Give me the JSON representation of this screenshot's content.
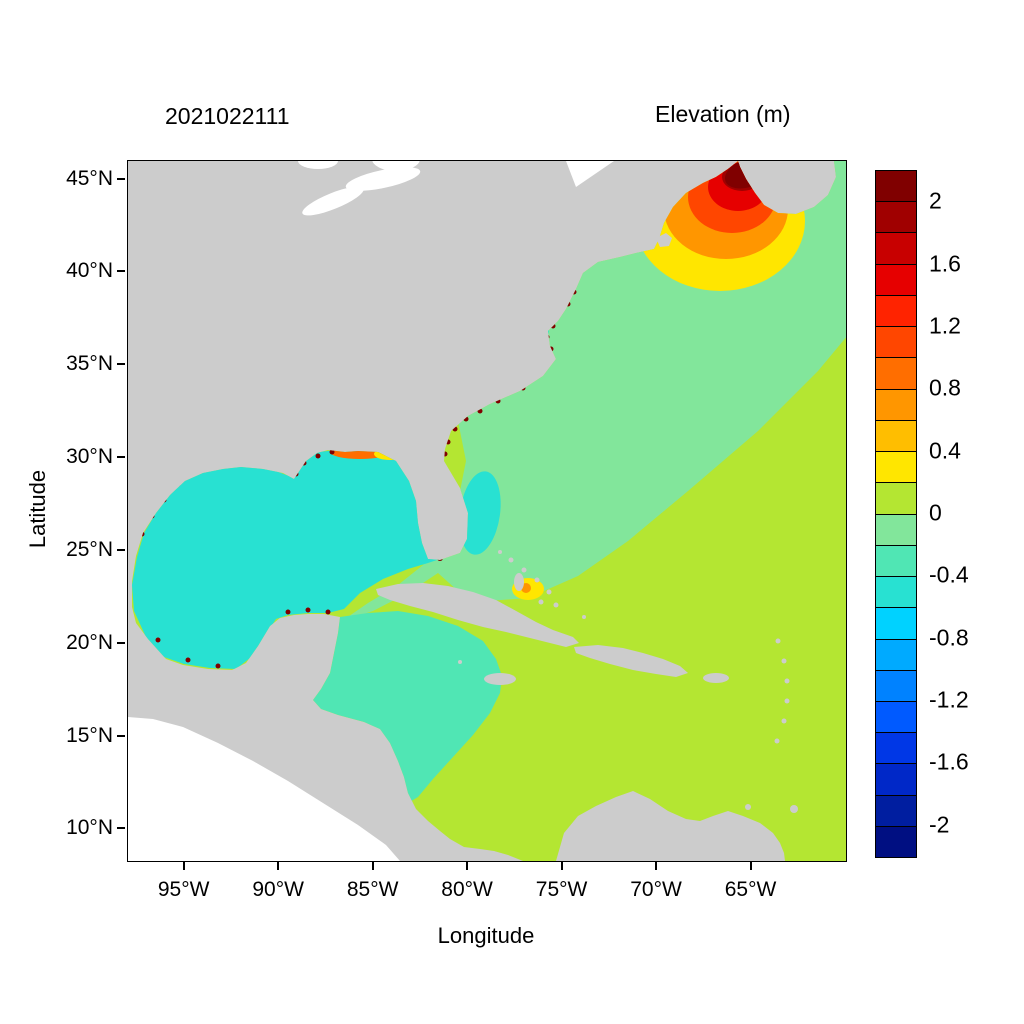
{
  "chart_data": {
    "type": "heatmap",
    "datestamp": "2021022111",
    "colorbar_title": "Elevation (m)",
    "xlabel": "Longitude",
    "ylabel": "Latitude",
    "xlim": [
      -98,
      -60
    ],
    "ylim": [
      8.3,
      46
    ],
    "grid": false,
    "x_ticks": [
      {
        "value": -95,
        "label": "95°W"
      },
      {
        "value": -90,
        "label": "90°W"
      },
      {
        "value": -85,
        "label": "85°W"
      },
      {
        "value": -80,
        "label": "80°W"
      },
      {
        "value": -75,
        "label": "75°W"
      },
      {
        "value": -70,
        "label": "70°W"
      },
      {
        "value": -65,
        "label": "65°W"
      }
    ],
    "y_ticks": [
      {
        "value": 45,
        "label": "45°N"
      },
      {
        "value": 40,
        "label": "40°N"
      },
      {
        "value": 35,
        "label": "35°N"
      },
      {
        "value": 30,
        "label": "30°N"
      },
      {
        "value": 25,
        "label": "25°N"
      },
      {
        "value": 20,
        "label": "20°N"
      },
      {
        "value": 15,
        "label": "15°N"
      },
      {
        "value": 10,
        "label": "10°N"
      }
    ],
    "colorbar": {
      "max": 2.2,
      "min": -2.2,
      "step": 0.2,
      "tick_labels": [
        "2",
        "1.6",
        "1.2",
        "0.8",
        "0.4",
        "0",
        "-0.4",
        "-0.8",
        "-1.2",
        "-1.6",
        "-2"
      ],
      "tick_values": [
        2,
        1.6,
        1.2,
        0.8,
        0.4,
        0,
        -0.4,
        -0.8,
        -1.2,
        -1.6,
        -2
      ],
      "cell_colors_top_to_bottom": [
        "#800000",
        "#a00000",
        "#c80000",
        "#e60000",
        "#ff2300",
        "#ff4600",
        "#ff6e00",
        "#ff9600",
        "#ffbe00",
        "#ffe600",
        "#b4e632",
        "#82e69b",
        "#50e6b4",
        "#28e1d2",
        "#00d2ff",
        "#00aaff",
        "#0082ff",
        "#005aff",
        "#0037e6",
        "#0028c8",
        "#001ea0",
        "#000f82"
      ]
    },
    "land_color": "#cccccc",
    "outside_domain_color": "#ffffff",
    "region_values_m": [
      {
        "region": "eastern-atlantic-and-caribbean",
        "elevation": 0.1
      },
      {
        "region": "northwest-atlantic-nearshore",
        "elevation": -0.1
      },
      {
        "region": "gulf-of-mexico",
        "elevation": -0.5
      },
      {
        "region": "western-caribbean",
        "elevation": -0.3
      },
      {
        "region": "gulf-of-maine-surge-rings",
        "elevation": [
          0.3,
          0.7,
          1.1,
          1.5,
          1.9
        ]
      },
      {
        "region": "bay-of-fundy",
        "elevation": 2.1
      },
      {
        "region": "southwest-florida-coast",
        "elevation": 2.1
      },
      {
        "region": "coastal-estuary-hotspots",
        "elevation": 2.1
      },
      {
        "region": "louisiana-and-panhandle-coast",
        "elevation": [
          0.35,
          0.9,
          1.3
        ]
      },
      {
        "region": "bahamas-patch",
        "elevation": [
          0.35,
          0.75
        ]
      },
      {
        "region": "orinoco-delta-patch",
        "elevation": 0.35
      },
      {
        "region": "florida-east-coast-patch",
        "elevation": -0.5
      }
    ]
  }
}
